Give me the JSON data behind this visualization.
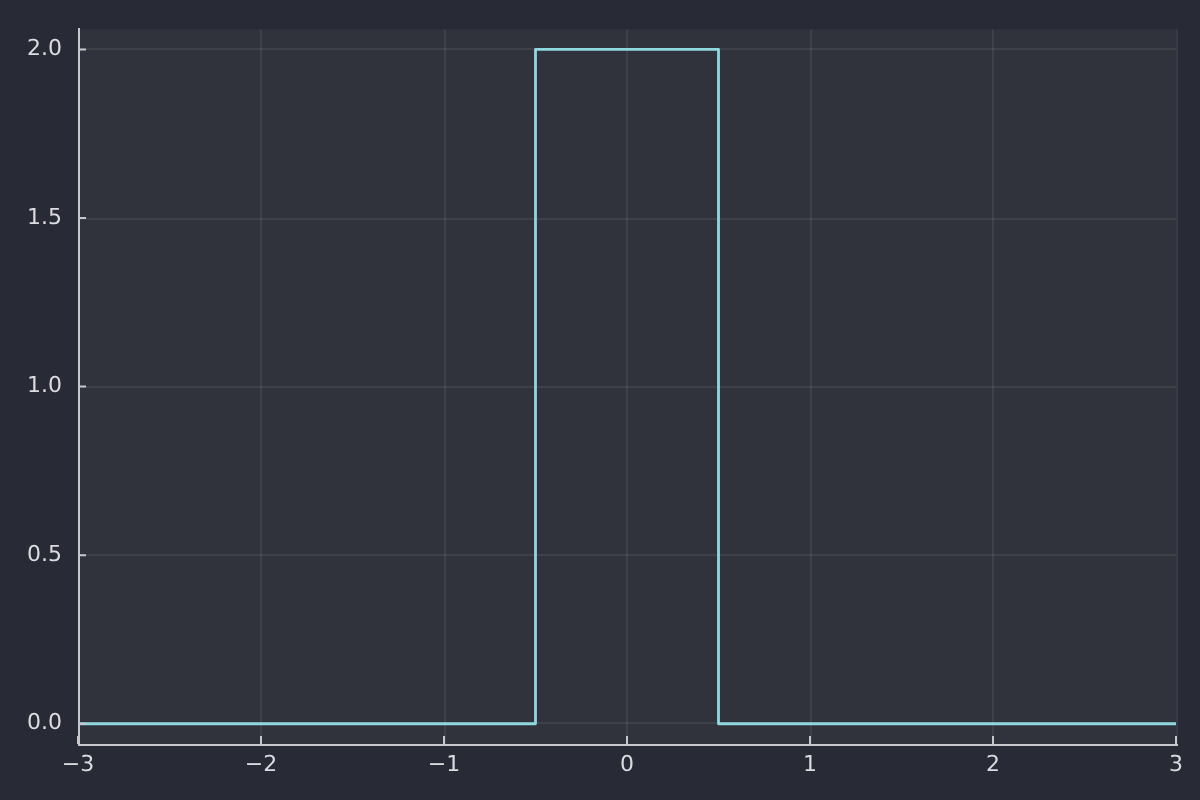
{
  "chart_data": {
    "type": "step",
    "x": [
      -3,
      -0.5,
      0.5,
      3
    ],
    "series": [
      {
        "color": "#8fd8e0",
        "values": [
          0,
          2,
          0,
          0
        ]
      }
    ],
    "xlim": [
      -3,
      3
    ],
    "ylim": [
      -0.06,
      2.06
    ],
    "xticks": [
      {
        "value": -3,
        "label": "−3"
      },
      {
        "value": -2,
        "label": "−2"
      },
      {
        "value": -1,
        "label": "−1"
      },
      0,
      1,
      2,
      3
    ],
    "yticks": [
      {
        "value": 0,
        "label": "0.0"
      },
      0.5,
      {
        "value": 1,
        "label": "1.0"
      },
      1.5,
      {
        "value": 2,
        "label": "2.0"
      }
    ],
    "grid": true
  }
}
